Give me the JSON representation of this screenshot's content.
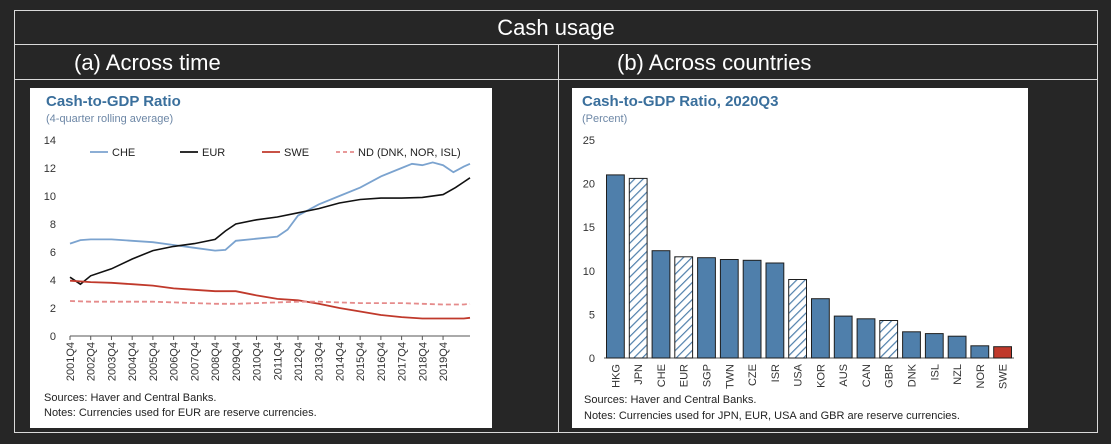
{
  "page": {
    "title": "Cash usage"
  },
  "panels": {
    "left_label": "(a)  Across time",
    "right_label": "(b)  Across countries"
  },
  "colors": {
    "che": "#7ba3cf",
    "eur": "#111111",
    "swe": "#c0392b",
    "nd": "#e58b8b",
    "bar_fill": "#4f7fab",
    "bar_swe": "#c0392b"
  },
  "chart_data": [
    {
      "type": "line",
      "title": "Cash-to-GDP Ratio",
      "subtitle": "(4-quarter rolling average)",
      "ylim": [
        0,
        14
      ],
      "yticks": [
        "0",
        "2",
        "4",
        "6",
        "8",
        "10",
        "12",
        "14"
      ],
      "x": [
        "2001Q4",
        "2002Q4",
        "2003Q4",
        "2004Q4",
        "2005Q4",
        "2006Q4",
        "2007Q4",
        "2008Q4",
        "2009Q4",
        "2010Q4",
        "2011Q4",
        "2012Q4",
        "2013Q4",
        "2014Q4",
        "2015Q4",
        "2016Q4",
        "2017Q4",
        "2018Q4",
        "2019Q4"
      ],
      "x_end": 19.3,
      "series": [
        {
          "name": "CHE",
          "key": "che",
          "dash": false,
          "points": [
            [
              0,
              6.6
            ],
            [
              0.5,
              6.85
            ],
            [
              1,
              6.9
            ],
            [
              2,
              6.9
            ],
            [
              3,
              6.8
            ],
            [
              4,
              6.7
            ],
            [
              5,
              6.5
            ],
            [
              6,
              6.3
            ],
            [
              7,
              6.1
            ],
            [
              7.5,
              6.15
            ],
            [
              8,
              6.8
            ],
            [
              9,
              6.95
            ],
            [
              10,
              7.1
            ],
            [
              10.5,
              7.6
            ],
            [
              11,
              8.6
            ],
            [
              12,
              9.4
            ],
            [
              13,
              10.0
            ],
            [
              14,
              10.6
            ],
            [
              15,
              11.4
            ],
            [
              16,
              12.0
            ],
            [
              16.5,
              12.3
            ],
            [
              17,
              12.2
            ],
            [
              17.5,
              12.4
            ],
            [
              18,
              12.2
            ],
            [
              18.5,
              11.7
            ],
            [
              19,
              12.1
            ],
            [
              19.3,
              12.3
            ]
          ]
        },
        {
          "name": "EUR",
          "key": "eur",
          "dash": false,
          "points": [
            [
              0,
              4.2
            ],
            [
              0.5,
              3.7
            ],
            [
              1,
              4.3
            ],
            [
              2,
              4.8
            ],
            [
              3,
              5.5
            ],
            [
              4,
              6.1
            ],
            [
              5,
              6.4
            ],
            [
              6,
              6.6
            ],
            [
              7,
              6.9
            ],
            [
              7.5,
              7.5
            ],
            [
              8,
              8.0
            ],
            [
              9,
              8.3
            ],
            [
              10,
              8.5
            ],
            [
              11,
              8.8
            ],
            [
              12,
              9.1
            ],
            [
              13,
              9.5
            ],
            [
              14,
              9.75
            ],
            [
              15,
              9.85
            ],
            [
              16,
              9.85
            ],
            [
              17,
              9.9
            ],
            [
              18,
              10.1
            ],
            [
              18.6,
              10.6
            ],
            [
              19,
              11.0
            ],
            [
              19.3,
              11.3
            ]
          ]
        },
        {
          "name": "SWE",
          "key": "swe",
          "dash": false,
          "points": [
            [
              0,
              3.95
            ],
            [
              1,
              3.85
            ],
            [
              2,
              3.8
            ],
            [
              3,
              3.7
            ],
            [
              4,
              3.6
            ],
            [
              5,
              3.4
            ],
            [
              6,
              3.3
            ],
            [
              7,
              3.2
            ],
            [
              8,
              3.2
            ],
            [
              9,
              2.9
            ],
            [
              10,
              2.65
            ],
            [
              11,
              2.55
            ],
            [
              12,
              2.3
            ],
            [
              13,
              2.0
            ],
            [
              14,
              1.75
            ],
            [
              15,
              1.5
            ],
            [
              16,
              1.35
            ],
            [
              17,
              1.25
            ],
            [
              18,
              1.25
            ],
            [
              19,
              1.25
            ],
            [
              19.3,
              1.3
            ]
          ]
        },
        {
          "name": "ND (DNK, NOR, ISL)",
          "key": "nd",
          "dash": true,
          "points": [
            [
              0,
              2.5
            ],
            [
              1,
              2.45
            ],
            [
              2,
              2.45
            ],
            [
              3,
              2.45
            ],
            [
              4,
              2.45
            ],
            [
              5,
              2.4
            ],
            [
              6,
              2.35
            ],
            [
              7,
              2.3
            ],
            [
              8,
              2.3
            ],
            [
              9,
              2.35
            ],
            [
              10,
              2.4
            ],
            [
              11,
              2.45
            ],
            [
              12,
              2.45
            ],
            [
              13,
              2.4
            ],
            [
              14,
              2.35
            ],
            [
              15,
              2.35
            ],
            [
              16,
              2.35
            ],
            [
              17,
              2.3
            ],
            [
              18,
              2.25
            ],
            [
              19,
              2.25
            ],
            [
              19.3,
              2.3
            ]
          ]
        }
      ],
      "legend": [
        "CHE",
        "EUR",
        "SWE",
        "ND (DNK, NOR, ISL)"
      ],
      "sources": "Sources: Haver and Central Banks.",
      "notes": "Notes: Currencies used for EUR are reserve currencies."
    },
    {
      "type": "bar",
      "title": "Cash-to-GDP Ratio, 2020Q3",
      "subtitle": "(Percent)",
      "ylim": [
        0,
        25
      ],
      "yticks": [
        "0",
        "5",
        "10",
        "15",
        "20",
        "25"
      ],
      "categories": [
        "HKG",
        "JPN",
        "CHE",
        "EUR",
        "SGP",
        "TWN",
        "CZE",
        "ISR",
        "USA",
        "KOR",
        "AUS",
        "CAN",
        "GBR",
        "DNK",
        "ISL",
        "NZL",
        "NOR",
        "SWE"
      ],
      "values": [
        21.0,
        20.6,
        12.3,
        11.6,
        11.5,
        11.3,
        11.2,
        10.9,
        9.0,
        6.8,
        4.8,
        4.5,
        4.3,
        3.0,
        2.8,
        2.5,
        1.4,
        1.3
      ],
      "hatched": [
        "JPN",
        "EUR",
        "USA",
        "GBR"
      ],
      "highlight": [
        "SWE"
      ],
      "sources": "Sources: Haver and Central Banks.",
      "notes": "Notes: Currencies used for JPN, EUR, USA and GBR are reserve currencies."
    }
  ]
}
